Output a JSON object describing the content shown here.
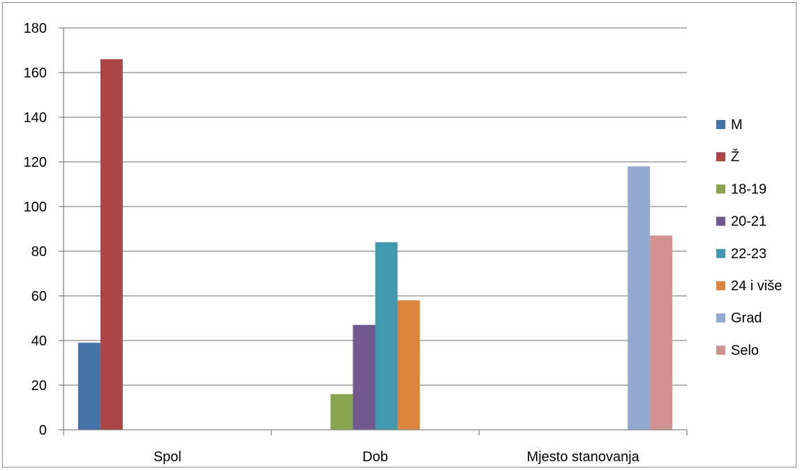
{
  "chart_data": {
    "type": "bar",
    "title": "",
    "xlabel": "",
    "ylabel": "",
    "categories": [
      "Spol",
      "Dob",
      "Mjesto stanovanja"
    ],
    "ylim": [
      0,
      180
    ],
    "yticks": [
      0,
      20,
      40,
      60,
      80,
      100,
      120,
      140,
      160,
      180
    ],
    "grid": true,
    "legend_position": "right",
    "series": [
      {
        "name": "M",
        "color": "#4572A7",
        "values": [
          39,
          null,
          null
        ]
      },
      {
        "name": "Ž",
        "color": "#AA4643",
        "values": [
          166,
          null,
          null
        ]
      },
      {
        "name": "18-19",
        "color": "#89A54E",
        "values": [
          null,
          16,
          null
        ]
      },
      {
        "name": "20-21",
        "color": "#71588F",
        "values": [
          null,
          47,
          null
        ]
      },
      {
        "name": "22-23",
        "color": "#4198AF",
        "values": [
          null,
          84,
          null
        ]
      },
      {
        "name": "24 i više",
        "color": "#DB843D",
        "values": [
          null,
          58,
          null
        ]
      },
      {
        "name": "Grad",
        "color": "#93A9CF",
        "values": [
          null,
          null,
          118
        ]
      },
      {
        "name": "Selo",
        "color": "#D19392",
        "values": [
          null,
          null,
          87
        ]
      }
    ]
  }
}
